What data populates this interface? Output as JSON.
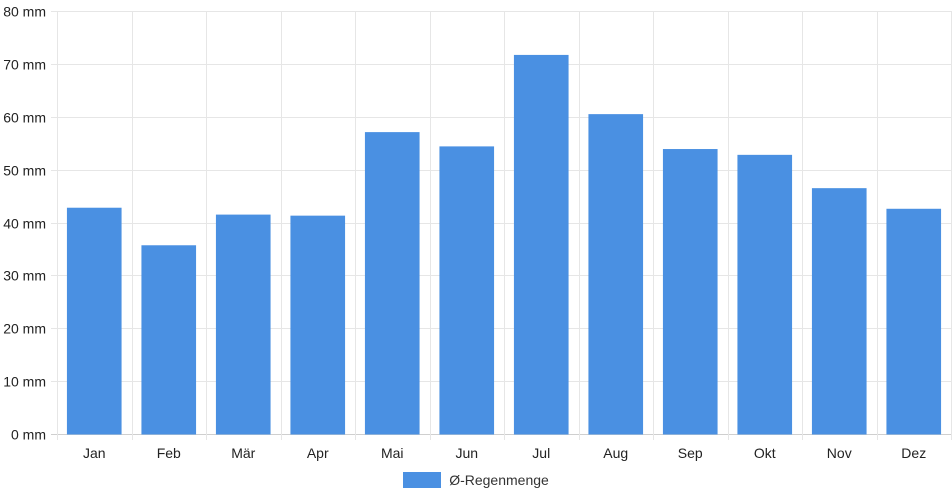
{
  "chart_data": {
    "type": "bar",
    "categories": [
      "Jan",
      "Feb",
      "Mär",
      "Apr",
      "Mai",
      "Jun",
      "Jul",
      "Aug",
      "Sep",
      "Okt",
      "Nov",
      "Dez"
    ],
    "series": [
      {
        "name": "Ø-Regenmenge",
        "values": [
          42.7,
          35.6,
          41.4,
          41.2,
          57.0,
          54.3,
          71.6,
          60.4,
          53.8,
          52.7,
          46.4,
          42.5
        ],
        "color": "#4a90e2"
      }
    ],
    "y_ticks": [
      0,
      10,
      20,
      30,
      40,
      50,
      60,
      70,
      80
    ],
    "y_unit": "mm",
    "ylim": [
      0,
      80
    ],
    "grid": true,
    "legend_position": "bottom"
  }
}
